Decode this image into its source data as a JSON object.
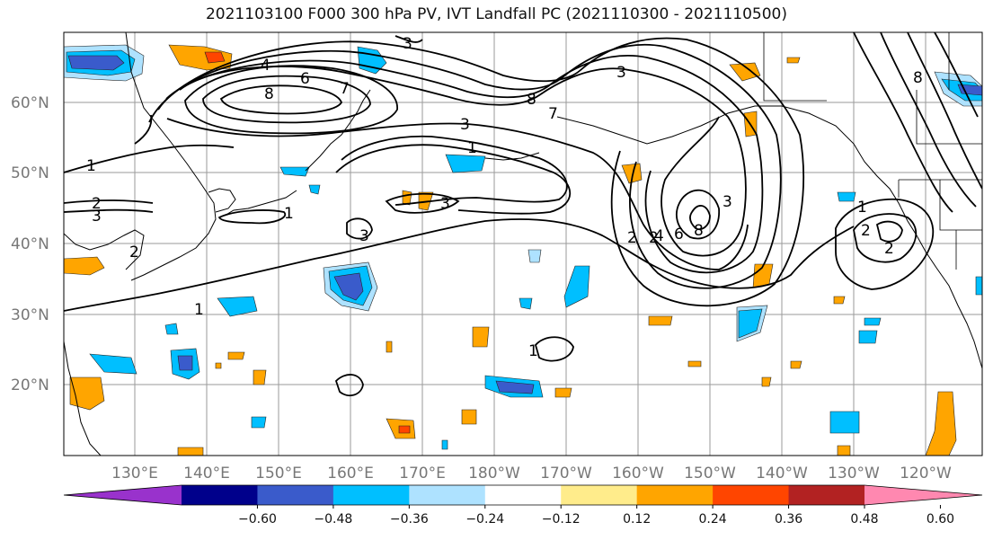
{
  "title": "2021103100 F000 300 hPa PV, IVT Landfall PC (2021110300 - 2021110500)",
  "map": {
    "lat_labels": [
      "60°N",
      "50°N",
      "40°N",
      "30°N",
      "20°N"
    ],
    "lon_labels": [
      "130°E",
      "140°E",
      "150°E",
      "160°E",
      "170°E",
      "180°W",
      "170°W",
      "160°W",
      "150°W",
      "140°W",
      "130°W",
      "120°W"
    ],
    "contour_labels": [
      "4",
      "6",
      "8",
      "7",
      "3",
      "3",
      "1",
      "3",
      "2",
      "3",
      "1",
      "1",
      "2",
      "2",
      "3",
      "1",
      "3",
      "8",
      "7",
      "2",
      "4",
      "6",
      "8",
      "1",
      "2",
      "2",
      "1",
      "3",
      "8"
    ]
  },
  "colorbar": {
    "colors": [
      "#9932CC",
      "#00008B",
      "#3A5BCB",
      "#00BFFF",
      "#AEE2FF",
      "#FFFFFF",
      "#FFEC8B",
      "#FFA500",
      "#FF4500",
      "#B22222",
      "#FF88B0"
    ],
    "tick_labels": [
      "−0.60",
      "−0.48",
      "−0.36",
      "−0.24",
      "−0.12",
      "0.12",
      "0.24",
      "0.36",
      "0.48",
      "0.60"
    ]
  }
}
